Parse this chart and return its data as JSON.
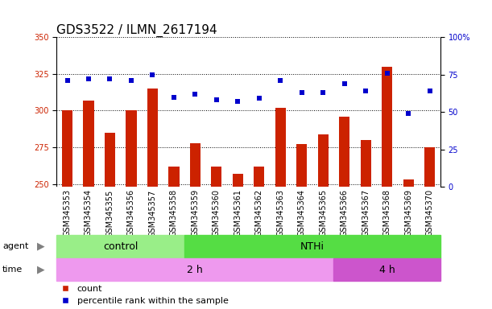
{
  "title": "GDS3522 / ILMN_2617194",
  "samples": [
    "GSM345353",
    "GSM345354",
    "GSM345355",
    "GSM345356",
    "GSM345357",
    "GSM345358",
    "GSM345359",
    "GSM345360",
    "GSM345361",
    "GSM345362",
    "GSM345363",
    "GSM345364",
    "GSM345365",
    "GSM345366",
    "GSM345367",
    "GSM345368",
    "GSM345369",
    "GSM345370"
  ],
  "counts": [
    300,
    307,
    285,
    300,
    315,
    262,
    278,
    262,
    257,
    262,
    302,
    277,
    284,
    296,
    280,
    330,
    253,
    275
  ],
  "percentiles": [
    71,
    72,
    72,
    71,
    75,
    60,
    62,
    58,
    57,
    59,
    71,
    63,
    63,
    69,
    64,
    76,
    49,
    64
  ],
  "ylim_left": [
    248,
    350
  ],
  "ylim_right": [
    0,
    100
  ],
  "yticks_left": [
    250,
    275,
    300,
    325,
    350
  ],
  "yticks_right": [
    0,
    25,
    50,
    75,
    100
  ],
  "bar_color": "#cc2200",
  "dot_color": "#0000cc",
  "grid_color": "#000000",
  "bar_width": 0.5,
  "agent_groups": [
    {
      "label": "control",
      "start": 0,
      "end": 5,
      "color": "#99ee88"
    },
    {
      "label": "NTHi",
      "start": 6,
      "end": 17,
      "color": "#55dd44"
    }
  ],
  "time_groups": [
    {
      "label": "2 h",
      "start": 0,
      "end": 12,
      "color": "#ee99ee"
    },
    {
      "label": "4 h",
      "start": 13,
      "end": 17,
      "color": "#cc55cc"
    }
  ],
  "agent_label": "agent",
  "time_label": "time",
  "legend_count_label": "count",
  "legend_pct_label": "percentile rank within the sample",
  "title_fontsize": 11,
  "tick_fontsize": 7,
  "label_fontsize": 8,
  "annot_fontsize": 9,
  "xtick_bg": "#d8d8d8"
}
